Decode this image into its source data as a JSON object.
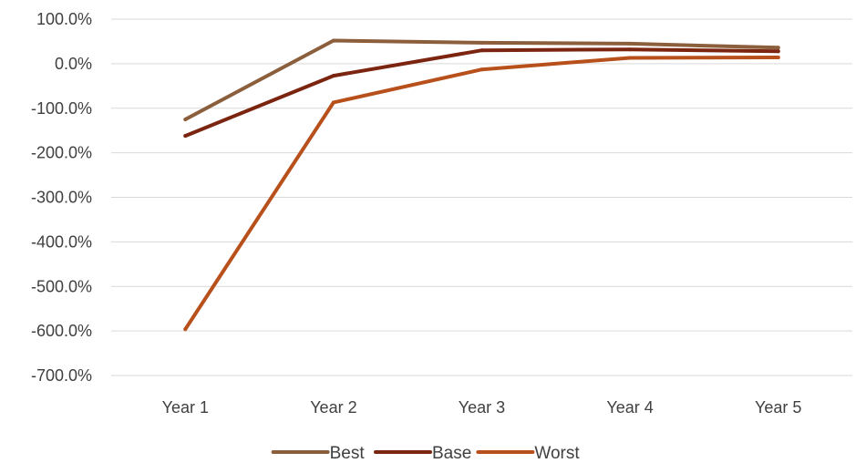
{
  "chart_data": {
    "type": "line",
    "categories": [
      "Year 1",
      "Year 2",
      "Year 3",
      "Year 4",
      "Year 5"
    ],
    "series": [
      {
        "name": "Best",
        "color": "#8B5E3C",
        "values": [
          -125,
          52,
          47,
          45,
          36
        ]
      },
      {
        "name": "Base",
        "color": "#7B2410",
        "values": [
          -162,
          -27,
          30,
          32,
          28
        ]
      },
      {
        "name": "Worst",
        "color": "#B8501C",
        "values": [
          -596,
          -87,
          -13,
          13,
          14
        ]
      }
    ],
    "yticks": [
      100,
      0,
      -100,
      -200,
      -300,
      -400,
      -500,
      -600,
      -700
    ],
    "ytick_labels": [
      "100.0%",
      "0.0%",
      "-100.0%",
      "-200.0%",
      "-300.0%",
      "-400.0%",
      "-500.0%",
      "-600.0%",
      "-700.0%"
    ],
    "ylim": [
      -700,
      100
    ],
    "grid": true,
    "gridline_color": "#d9d9d9",
    "legend_position": "bottom"
  }
}
